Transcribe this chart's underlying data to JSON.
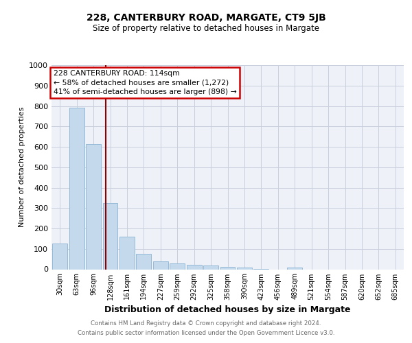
{
  "title1": "228, CANTERBURY ROAD, MARGATE, CT9 5JB",
  "title2": "Size of property relative to detached houses in Margate",
  "xlabel": "Distribution of detached houses by size in Margate",
  "ylabel": "Number of detached properties",
  "categories": [
    "30sqm",
    "63sqm",
    "96sqm",
    "128sqm",
    "161sqm",
    "194sqm",
    "227sqm",
    "259sqm",
    "292sqm",
    "325sqm",
    "358sqm",
    "390sqm",
    "423sqm",
    "456sqm",
    "489sqm",
    "521sqm",
    "554sqm",
    "587sqm",
    "620sqm",
    "652sqm",
    "685sqm"
  ],
  "values": [
    125,
    790,
    615,
    325,
    160,
    75,
    38,
    27,
    22,
    17,
    13,
    8,
    2,
    0,
    8,
    0,
    0,
    0,
    0,
    0,
    0
  ],
  "bar_color": "#c5d9ec",
  "bar_edgecolor": "#8ab4d4",
  "vline_x": 2.75,
  "vline_color": "#8b0000",
  "ylim": [
    0,
    1000
  ],
  "yticks": [
    0,
    100,
    200,
    300,
    400,
    500,
    600,
    700,
    800,
    900,
    1000
  ],
  "annotation_box_text": [
    "228 CANTERBURY ROAD: 114sqm",
    "← 58% of detached houses are smaller (1,272)",
    "41% of semi-detached houses are larger (898) →"
  ],
  "annotation_box_color": "#cc0000",
  "footer1": "Contains HM Land Registry data © Crown copyright and database right 2024.",
  "footer2": "Contains public sector information licensed under the Open Government Licence v3.0.",
  "background_color": "#eef1f8",
  "grid_color": "#c8cedd"
}
